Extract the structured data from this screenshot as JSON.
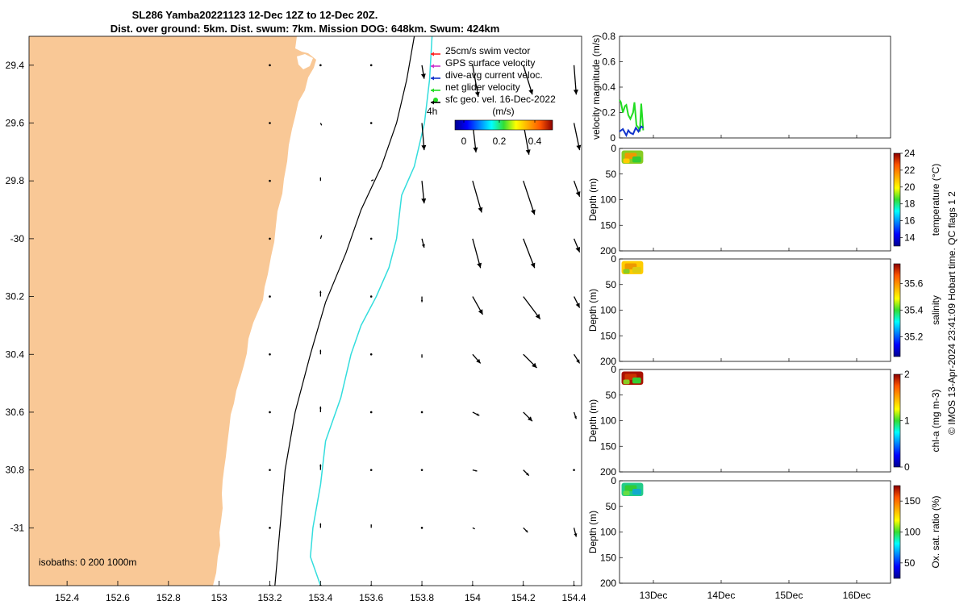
{
  "title_line1": "SL286 Yamba20221123 12-Dec 12Z to 12-Dec 20Z.",
  "title_line2": "Dist. over ground: 5km. Dist. swum: 7km. Mission DOG: 648km. Swum: 424km",
  "credit": "© IMOS 13-Apr-2024 23:41:09 Hobart time. QC flags 1  2",
  "colors": {
    "land": "#f9c896",
    "sst": "#33dddd",
    "isobath": "#000000",
    "net": "#22dd22",
    "dive": "#1133cc",
    "swim": "#ff2222",
    "gps": "#cc33cc"
  },
  "map": {
    "lon_ticks": [
      "152.4",
      "152.6",
      "152.8",
      "153",
      "153.2",
      "153.4",
      "153.6",
      "153.8",
      "154",
      "154.2",
      "154.4"
    ],
    "lat_ticks": [
      "29.4",
      "29.6",
      "29.8",
      "-30",
      "30.2",
      "30.4",
      "30.6",
      "30.8",
      "-31"
    ],
    "xlim": [
      152.25,
      154.43
    ],
    "ylim": [
      -31.2,
      -29.3
    ],
    "isobath_label": "isobaths: 0   200  1000m",
    "label_4h": "4h",
    "legend": [
      {
        "label": "25cm/s swim vector",
        "color": "#ff2222"
      },
      {
        "label": "GPS surface velocity",
        "color": "#cc33cc"
      },
      {
        "label": "dive-avg current veloc.",
        "color": "#1133cc"
      },
      {
        "label": "net glider velocity",
        "color": "#22dd22"
      },
      {
        "label": "sfc geo. vel. 16-Dec-2022",
        "color": "#000000"
      }
    ],
    "colorbar_title": "(m/s)",
    "colorbar_ticks": [
      "0",
      "0.2",
      "0.4"
    ],
    "vector_lons": [
      153.2,
      153.4,
      153.6,
      153.8,
      154.0,
      154.2,
      154.4
    ],
    "vector_lats": [
      -29.4,
      -29.6,
      -29.8,
      -30.0,
      -30.2,
      -30.4,
      -30.6,
      -30.8,
      -31.0,
      -31.2
    ],
    "vectors": [
      [
        [
          0,
          0
        ],
        [
          0.01,
          -0.01
        ],
        [
          0.01,
          -0.01
        ],
        [
          0.02,
          -0.12
        ],
        [
          0.05,
          -0.28
        ],
        [
          0.08,
          -0.26
        ],
        [
          0.02,
          -0.26
        ]
      ],
      [
        [
          0,
          0
        ],
        [
          0.01,
          -0.02
        ],
        [
          0.01,
          -0.01
        ],
        [
          0.02,
          -0.24
        ],
        [
          0.03,
          -0.26
        ],
        [
          0.05,
          -0.28
        ],
        [
          0.05,
          -0.24
        ]
      ],
      [
        [
          0,
          0
        ],
        [
          0,
          0.03
        ],
        [
          0.02,
          0.01
        ],
        [
          0.02,
          -0.2
        ],
        [
          0.08,
          -0.28
        ],
        [
          0.1,
          -0.3
        ],
        [
          0.05,
          -0.14
        ]
      ],
      [
        [
          0,
          0
        ],
        [
          0.01,
          0.03
        ],
        [
          0.01,
          -0.01
        ],
        [
          0.02,
          -0.08
        ],
        [
          0.07,
          -0.26
        ],
        [
          0.1,
          -0.26
        ],
        [
          0.05,
          -0.12
        ]
      ],
      [
        [
          0,
          0
        ],
        [
          0,
          0.05
        ],
        [
          0,
          0.01
        ],
        [
          0,
          -0.05
        ],
        [
          0.09,
          -0.16
        ],
        [
          0.15,
          -0.2
        ],
        [
          0.05,
          -0.1
        ]
      ],
      [
        [
          0,
          0
        ],
        [
          0,
          0.04
        ],
        [
          0,
          0.01
        ],
        [
          0,
          -0.03
        ],
        [
          0.07,
          -0.08
        ],
        [
          0.12,
          -0.12
        ],
        [
          0.05,
          -0.08
        ]
      ],
      [
        [
          0,
          0
        ],
        [
          0,
          0.05
        ],
        [
          0,
          0.01
        ],
        [
          0,
          -0.01
        ],
        [
          0.06,
          -0.03
        ],
        [
          0.08,
          -0.08
        ],
        [
          0.02,
          -0.06
        ]
      ],
      [
        [
          0,
          0
        ],
        [
          0,
          0.05
        ],
        [
          0,
          0.01
        ],
        [
          0,
          0.01
        ],
        [
          0.04,
          -0.01
        ],
        [
          0.05,
          -0.05
        ],
        [
          0,
          0
        ]
      ],
      [
        [
          0,
          0
        ],
        [
          0,
          0.04
        ],
        [
          0,
          0.03
        ],
        [
          0,
          0.02
        ],
        [
          0.02,
          -0.01
        ],
        [
          0.04,
          -0.04
        ],
        [
          0.02,
          -0.08
        ]
      ],
      [
        [
          0,
          0
        ],
        [
          0,
          0
        ],
        [
          0,
          0
        ],
        [
          0,
          0
        ],
        [
          0,
          0
        ],
        [
          0,
          0
        ],
        [
          0,
          0
        ]
      ]
    ],
    "contour_0m": [
      [
        153.22,
        -31.2
      ],
      [
        153.24,
        -31.0
      ],
      [
        153.26,
        -30.8
      ],
      [
        153.3,
        -30.6
      ],
      [
        153.36,
        -30.4
      ],
      [
        153.42,
        -30.22
      ],
      [
        153.5,
        -30.05
      ],
      [
        153.56,
        -29.9
      ],
      [
        153.64,
        -29.75
      ],
      [
        153.7,
        -29.6
      ],
      [
        153.74,
        -29.45
      ],
      [
        153.77,
        -29.3
      ]
    ],
    "contour_sst": [
      [
        153.4,
        -31.2
      ],
      [
        153.36,
        -31.1
      ],
      [
        153.37,
        -31.0
      ],
      [
        153.4,
        -30.85
      ],
      [
        153.42,
        -30.7
      ],
      [
        153.48,
        -30.55
      ],
      [
        153.52,
        -30.4
      ],
      [
        153.56,
        -30.3
      ],
      [
        153.62,
        -30.2
      ],
      [
        153.67,
        -30.1
      ],
      [
        153.7,
        -30.0
      ],
      [
        153.72,
        -29.85
      ],
      [
        153.77,
        -29.75
      ],
      [
        153.81,
        -29.6
      ],
      [
        153.83,
        -29.45
      ],
      [
        153.84,
        -29.3
      ]
    ]
  },
  "vel_panel": {
    "ylabel": "velocity magnitude (m/s)",
    "yticks": [
      "0",
      "0.2",
      "0.4",
      "0.6",
      "0.8"
    ],
    "ylim": [
      0,
      0.8
    ],
    "series": [
      {
        "color": "#22dd22",
        "x": [
          12.5,
          12.52,
          12.55,
          12.58,
          12.6,
          12.63,
          12.66,
          12.7,
          12.72,
          12.75,
          12.78,
          12.8,
          12.82,
          12.85
        ],
        "y": [
          0.3,
          0.28,
          0.2,
          0.25,
          0.26,
          0.18,
          0.15,
          0.2,
          0.28,
          0.1,
          0.08,
          0.05,
          0.27,
          0.06
        ]
      },
      {
        "color": "#1133cc",
        "x": [
          12.5,
          12.55,
          12.6,
          12.63,
          12.66,
          12.7,
          12.74,
          12.78,
          12.82,
          12.85
        ],
        "y": [
          0.05,
          0.07,
          0.02,
          0.06,
          0.04,
          0.03,
          0.08,
          0.05,
          0.09,
          0.08
        ]
      }
    ]
  },
  "time_axis": {
    "xlim": [
      12.5,
      16.5
    ],
    "ticks": [
      {
        "label": "13Dec",
        "value": 13
      },
      {
        "label": "14Dec",
        "value": 14
      },
      {
        "label": "15Dec",
        "value": 15
      },
      {
        "label": "16Dec",
        "value": 16
      }
    ]
  },
  "profile_panels": [
    {
      "ylabel": "Depth (m)",
      "cblabel": "temperature (°C)",
      "cbticks": [
        "14",
        "16",
        "18",
        "20",
        "22",
        "24"
      ],
      "cbrange": [
        13,
        24
      ],
      "yticks": [
        "0",
        "50",
        "100",
        "150",
        "200"
      ],
      "colors": [
        "#88cc22",
        "#ee9900",
        "#33cc33",
        "#ffcc00"
      ]
    },
    {
      "ylabel": "Depth (m)",
      "cblabel": "salinity",
      "cbticks": [
        "35.2",
        "35.4",
        "35.6"
      ],
      "cbrange": [
        35.05,
        35.75
      ],
      "yticks": [
        "0",
        "50",
        "100",
        "150",
        "200"
      ],
      "colors": [
        "#ffcc00",
        "#ee9900",
        "#ddcc11",
        "#88cc22"
      ]
    },
    {
      "ylabel": "Depth (m)",
      "cblabel": "chl-a (mg m-3)",
      "cbticks": [
        "0",
        "1",
        "2"
      ],
      "cbrange": [
        0,
        2
      ],
      "yticks": [
        "0",
        "50",
        "100",
        "150",
        "200"
      ],
      "colors": [
        "#aa1100",
        "#cc3300",
        "#33cc33",
        "#88cc22"
      ]
    },
    {
      "ylabel": "Depth (m)",
      "cblabel": "Ox. sat. ratio (%)",
      "cbticks": [
        "50",
        "100",
        "150"
      ],
      "cbrange": [
        25,
        175
      ],
      "yticks": [
        "0",
        "50",
        "100",
        "150",
        "200"
      ],
      "colors": [
        "#22cc88",
        "#33cc33",
        "#11aacc",
        "#66dd44"
      ]
    }
  ]
}
